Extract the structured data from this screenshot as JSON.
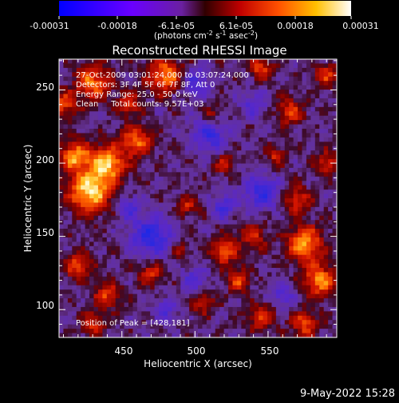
{
  "colorbar": {
    "tick_labels": [
      "-0.00031",
      "-0.00018",
      "-6.1e-05",
      "6.1e-05",
      "0.00018",
      "0.00031"
    ],
    "unit_prefix": "(photons cm",
    "unit_exp1": "-2",
    "unit_mid": " s",
    "unit_exp2": "-1",
    "unit_mid2": " asec",
    "unit_exp3": "-2",
    "unit_suffix": ")",
    "range": [
      -0.00031,
      0.00031
    ],
    "colormap": "rainbow-to-hot: blue, purple, red, orange, yellow, white"
  },
  "chart_data": {
    "type": "heatmap",
    "title": "Reconstructed RHESSI Image",
    "xlabel": "Heliocentric X (arcsec)",
    "ylabel": "Heliocentric Y (arcsec)",
    "xlim": [
      407,
      597
    ],
    "ylim": [
      81,
      271
    ],
    "xticks": [
      450,
      500,
      550
    ],
    "yticks": [
      100,
      150,
      200,
      250
    ],
    "annotations": [
      "27-Oct-2009 03:01:24.000 to 03:07:24.000",
      "Detectors: 3F 4F 5F 6F 7F 8F, Att 0",
      "Energy Range: 25.0 - 50.0 keV",
      "Clean     Total counts: 9.57E+03"
    ],
    "peak_label": "Position of Peak = [428,181]",
    "peak": [
      428,
      181
    ]
  },
  "footer_date": "9-May-2022 15:28"
}
